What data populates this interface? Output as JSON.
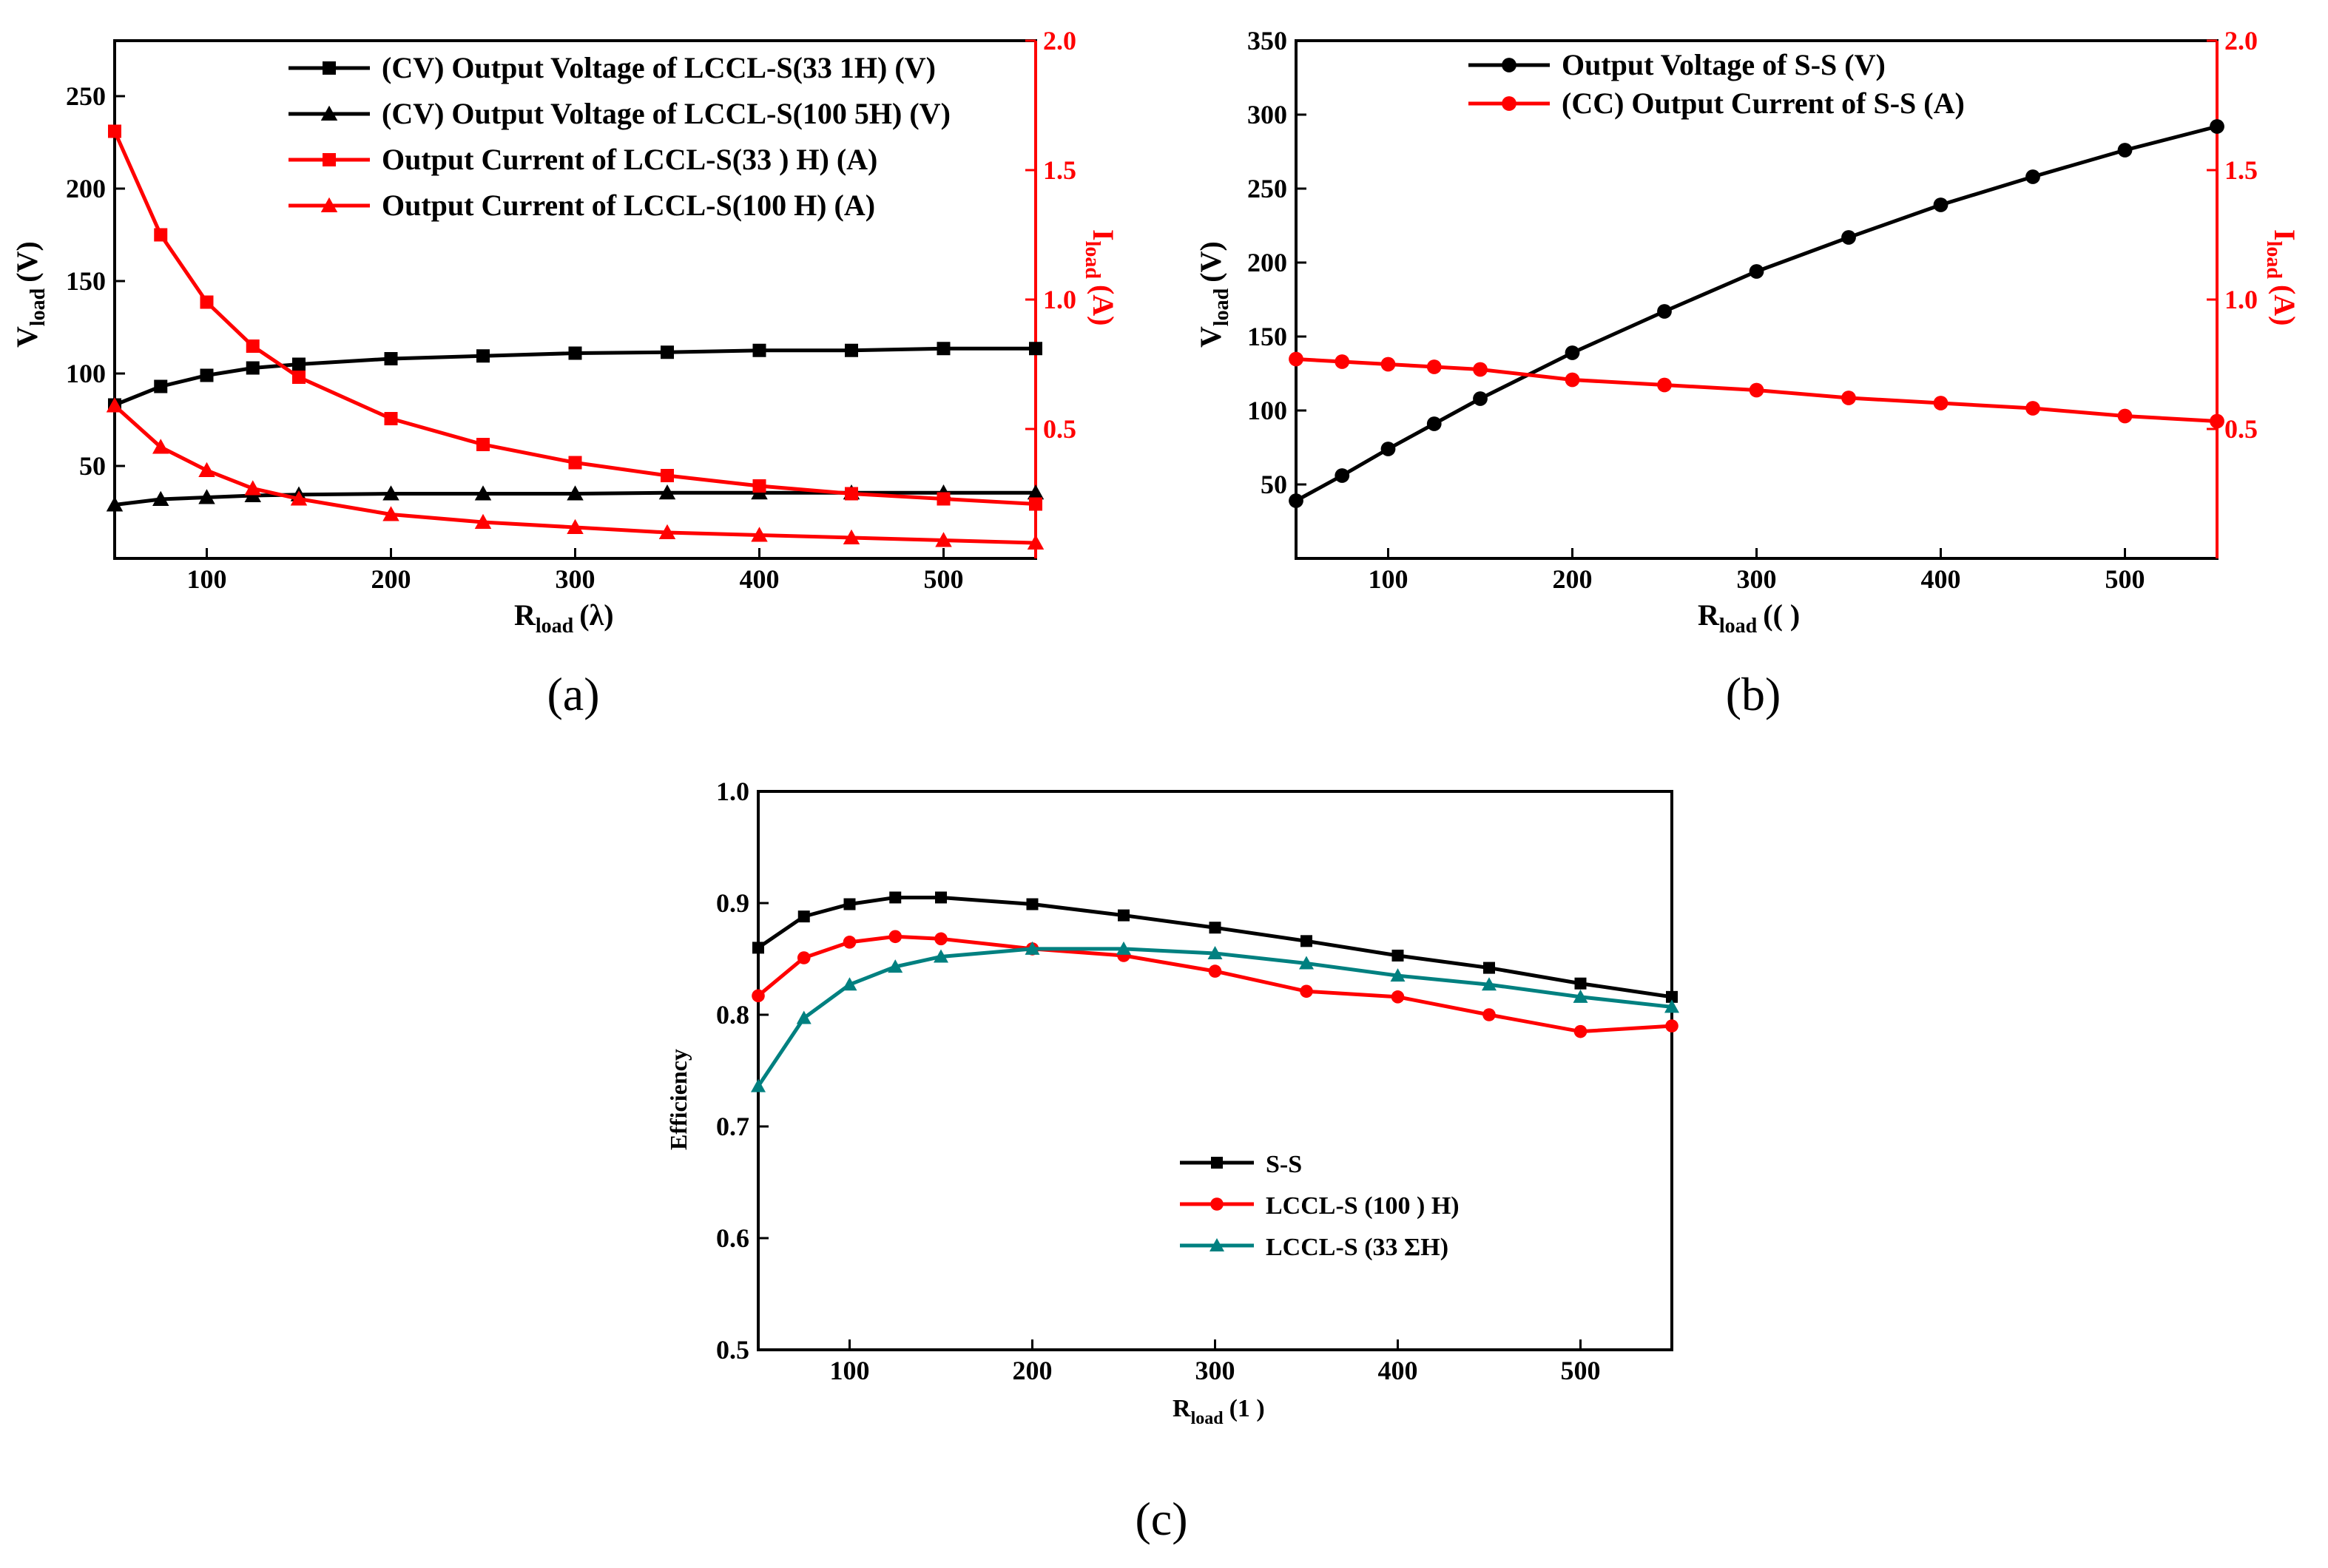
{
  "chart_data": [
    {
      "id": "a",
      "type": "line",
      "panel_label": "(a)",
      "xlabel": {
        "main": "R",
        "sub": "load",
        "tail": "(λ)"
      },
      "ylabel_left": {
        "main": "V",
        "sub": "load",
        "tail": "(V)"
      },
      "ylabel_right": {
        "main": "I",
        "sub": "load",
        "tail": "(A)"
      },
      "xlim": [
        50,
        550
      ],
      "ylim_left": [
        0,
        280
      ],
      "ylim_right": [
        0,
        2.0
      ],
      "xticks": [
        100,
        200,
        300,
        400,
        500
      ],
      "yticks_left": [
        50,
        100,
        150,
        200,
        250
      ],
      "yticks_right": [
        0.5,
        1.0,
        1.5,
        2.0
      ],
      "x": [
        50,
        75,
        100,
        125,
        150,
        200,
        250,
        300,
        350,
        400,
        450,
        500,
        550
      ],
      "series": [
        {
          "name": "(CV) Output Voltage of LCCL-S(33 1H) (V)",
          "axis": "left",
          "color": "#000000",
          "marker": "square",
          "values": [
            83,
            93,
            99,
            103,
            105,
            108,
            109.5,
            111,
            111.5,
            112.5,
            112.5,
            113.5,
            113.5
          ]
        },
        {
          "name": "(CV) Output Voltage of LCCL-S(100 5H) (V)",
          "axis": "left",
          "color": "#000000",
          "marker": "triangle",
          "values": [
            29,
            32,
            33,
            34,
            34.5,
            35,
            35,
            35,
            35.5,
            35.5,
            35.5,
            35.5,
            35.5
          ]
        },
        {
          "name": "Output Current of LCCL-S(33 ) H) (A)",
          "axis": "right",
          "color": "#ff0000",
          "marker": "square",
          "values": [
            1.65,
            1.25,
            0.99,
            0.82,
            0.7,
            0.54,
            0.44,
            0.37,
            0.32,
            0.28,
            0.25,
            0.23,
            0.21
          ]
        },
        {
          "name": "Output Current of LCCL-S(100   H) (A)",
          "axis": "right",
          "color": "#ff0000",
          "marker": "triangle",
          "values": [
            0.59,
            0.43,
            0.34,
            0.27,
            0.23,
            0.17,
            0.14,
            0.12,
            0.1,
            0.09,
            0.08,
            0.07,
            0.06
          ]
        }
      ]
    },
    {
      "id": "b",
      "type": "line",
      "panel_label": "(b)",
      "xlabel": {
        "main": "R",
        "sub": "load",
        "tail": "(( )"
      },
      "ylabel_left": {
        "main": "V",
        "sub": "load",
        "tail": "(V)"
      },
      "ylabel_right": {
        "main": "I",
        "sub": "load",
        "tail": "(A)"
      },
      "xlim": [
        50,
        550
      ],
      "ylim_left": [
        0,
        350
      ],
      "ylim_right": [
        0,
        2.0
      ],
      "xticks": [
        100,
        200,
        300,
        400,
        500
      ],
      "yticks_left": [
        50,
        100,
        150,
        200,
        250,
        300,
        350
      ],
      "yticks_right": [
        0.5,
        1.0,
        1.5,
        2.0
      ],
      "x": [
        50,
        75,
        100,
        125,
        150,
        200,
        250,
        300,
        350,
        400,
        450,
        500,
        550
      ],
      "series": [
        {
          "name": "Output Voltage of S-S (V)",
          "axis": "left",
          "color": "#000000",
          "marker": "circle",
          "values": [
            39,
            56,
            74,
            91,
            108,
            139,
            167,
            194,
            217,
            239,
            258,
            276,
            292
          ]
        },
        {
          "name": "(CC) Output Current of S-S (A)",
          "axis": "right",
          "color": "#ff0000",
          "marker": "circle",
          "values": [
            0.77,
            0.76,
            0.75,
            0.74,
            0.73,
            0.69,
            0.67,
            0.65,
            0.62,
            0.6,
            0.58,
            0.55,
            0.53
          ]
        }
      ]
    },
    {
      "id": "c",
      "type": "line",
      "panel_label": "(c)",
      "xlabel": {
        "main": "R",
        "sub": "load",
        "tail": "(1 )"
      },
      "ylabel": "Efficiency",
      "xlim": [
        50,
        550
      ],
      "ylim": [
        0.5,
        1.0
      ],
      "xticks": [
        100,
        200,
        300,
        400,
        500
      ],
      "yticks": [
        0.5,
        0.6,
        0.7,
        0.8,
        0.9,
        1.0
      ],
      "x": [
        50,
        75,
        100,
        125,
        150,
        200,
        250,
        300,
        350,
        400,
        450,
        500,
        550
      ],
      "series": [
        {
          "name": "S-S",
          "color": "#000000",
          "marker": "square",
          "values": [
            0.86,
            0.888,
            0.899,
            0.905,
            0.905,
            0.899,
            0.889,
            0.878,
            0.866,
            0.853,
            0.842,
            0.828,
            0.816
          ]
        },
        {
          "name": "LCCL-S (100 ) H)",
          "color": "#ff0000",
          "marker": "circle",
          "values": [
            0.817,
            0.851,
            0.865,
            0.87,
            0.868,
            0.859,
            0.853,
            0.839,
            0.821,
            0.816,
            0.8,
            0.785,
            0.79
          ]
        },
        {
          "name": "LCCL-S (33 ΣH)",
          "color": "#008080",
          "marker": "triangle",
          "values": [
            0.736,
            0.797,
            0.827,
            0.843,
            0.852,
            0.859,
            0.859,
            0.855,
            0.846,
            0.835,
            0.827,
            0.816,
            0.807
          ]
        }
      ]
    }
  ]
}
